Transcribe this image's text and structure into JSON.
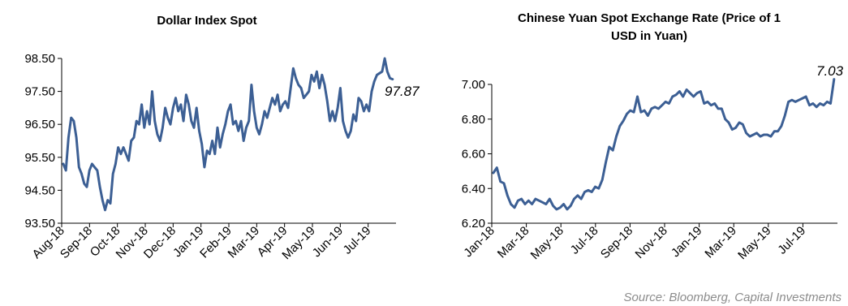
{
  "source": "Source: Bloomberg, Capital Investments",
  "chart_data": [
    {
      "type": "line",
      "title": "Dollar Index Spot",
      "xlabel": "",
      "ylabel": "",
      "ylim": [
        93.5,
        98.5
      ],
      "yticks": [
        "93.50",
        "94.50",
        "95.50",
        "96.50",
        "97.50",
        "98.50"
      ],
      "xticks": [
        "Aug-18",
        "Sep-18",
        "Oct-18",
        "Nov-18",
        "Dec-18",
        "Jan-19",
        "Feb-19",
        "Mar-19",
        "Apr-19",
        "May-19",
        "Jun-19",
        "Jul-19"
      ],
      "xlim": [
        0,
        12.7
      ],
      "grid": false,
      "color": "#3c5f94",
      "end_label": "97.87",
      "series": [
        {
          "values": [
            [
              0.0,
              95.3
            ],
            [
              0.1,
              95.1
            ],
            [
              0.2,
              96.1
            ],
            [
              0.3,
              96.7
            ],
            [
              0.4,
              96.6
            ],
            [
              0.5,
              96.1
            ],
            [
              0.6,
              95.2
            ],
            [
              0.7,
              95.0
            ],
            [
              0.8,
              94.7
            ],
            [
              0.9,
              94.6
            ],
            [
              1.0,
              95.1
            ],
            [
              1.1,
              95.3
            ],
            [
              1.2,
              95.2
            ],
            [
              1.3,
              95.1
            ],
            [
              1.4,
              94.6
            ],
            [
              1.5,
              94.2
            ],
            [
              1.6,
              93.9
            ],
            [
              1.7,
              94.2
            ],
            [
              1.8,
              94.1
            ],
            [
              1.9,
              95.0
            ],
            [
              2.0,
              95.3
            ],
            [
              2.1,
              95.8
            ],
            [
              2.2,
              95.6
            ],
            [
              2.3,
              95.8
            ],
            [
              2.4,
              95.6
            ],
            [
              2.5,
              95.4
            ],
            [
              2.6,
              96.0
            ],
            [
              2.7,
              96.1
            ],
            [
              2.8,
              96.6
            ],
            [
              2.9,
              96.5
            ],
            [
              3.0,
              97.1
            ],
            [
              3.1,
              96.4
            ],
            [
              3.2,
              96.9
            ],
            [
              3.3,
              96.5
            ],
            [
              3.4,
              97.5
            ],
            [
              3.5,
              96.6
            ],
            [
              3.6,
              96.2
            ],
            [
              3.7,
              96.0
            ],
            [
              3.8,
              96.4
            ],
            [
              3.9,
              97.0
            ],
            [
              4.0,
              96.7
            ],
            [
              4.1,
              96.5
            ],
            [
              4.2,
              97.0
            ],
            [
              4.3,
              97.3
            ],
            [
              4.4,
              96.9
            ],
            [
              4.5,
              97.1
            ],
            [
              4.6,
              96.6
            ],
            [
              4.7,
              97.4
            ],
            [
              4.8,
              97.1
            ],
            [
              4.9,
              96.6
            ],
            [
              5.0,
              96.4
            ],
            [
              5.1,
              97.0
            ],
            [
              5.2,
              96.3
            ],
            [
              5.3,
              95.9
            ],
            [
              5.4,
              95.2
            ],
            [
              5.5,
              95.7
            ],
            [
              5.6,
              95.6
            ],
            [
              5.7,
              96.0
            ],
            [
              5.8,
              95.6
            ],
            [
              5.9,
              96.4
            ],
            [
              6.0,
              95.8
            ],
            [
              6.1,
              96.2
            ],
            [
              6.2,
              96.5
            ],
            [
              6.3,
              96.9
            ],
            [
              6.4,
              97.1
            ],
            [
              6.5,
              96.5
            ],
            [
              6.6,
              96.6
            ],
            [
              6.7,
              96.3
            ],
            [
              6.8,
              96.6
            ],
            [
              6.9,
              96.0
            ],
            [
              7.0,
              96.4
            ],
            [
              7.1,
              96.6
            ],
            [
              7.2,
              97.7
            ],
            [
              7.3,
              96.9
            ],
            [
              7.4,
              96.4
            ],
            [
              7.5,
              96.2
            ],
            [
              7.6,
              96.5
            ],
            [
              7.7,
              96.9
            ],
            [
              7.8,
              96.7
            ],
            [
              7.9,
              97.0
            ],
            [
              8.0,
              97.3
            ],
            [
              8.1,
              97.1
            ],
            [
              8.2,
              97.4
            ],
            [
              8.3,
              96.9
            ],
            [
              8.4,
              97.1
            ],
            [
              8.5,
              97.2
            ],
            [
              8.6,
              97.0
            ],
            [
              8.7,
              97.6
            ],
            [
              8.8,
              98.2
            ],
            [
              8.9,
              97.9
            ],
            [
              9.0,
              97.7
            ],
            [
              9.1,
              97.6
            ],
            [
              9.2,
              97.3
            ],
            [
              9.3,
              97.4
            ],
            [
              9.4,
              97.5
            ],
            [
              9.5,
              98.0
            ],
            [
              9.6,
              97.8
            ],
            [
              9.7,
              98.1
            ],
            [
              9.8,
              97.6
            ],
            [
              9.9,
              98.0
            ],
            [
              10.0,
              97.7
            ],
            [
              10.1,
              97.2
            ],
            [
              10.2,
              96.6
            ],
            [
              10.3,
              96.9
            ],
            [
              10.4,
              96.6
            ],
            [
              10.5,
              97.0
            ],
            [
              10.6,
              97.6
            ],
            [
              10.7,
              96.6
            ],
            [
              10.8,
              96.3
            ],
            [
              10.9,
              96.1
            ],
            [
              11.0,
              96.3
            ],
            [
              11.1,
              96.8
            ],
            [
              11.2,
              96.6
            ],
            [
              11.3,
              97.3
            ],
            [
              11.4,
              97.2
            ],
            [
              11.5,
              96.9
            ],
            [
              11.6,
              97.1
            ],
            [
              11.7,
              96.9
            ],
            [
              11.8,
              97.5
            ],
            [
              11.9,
              97.8
            ],
            [
              12.0,
              98.0
            ],
            [
              12.2,
              98.1
            ],
            [
              12.3,
              98.5
            ],
            [
              12.4,
              98.1
            ],
            [
              12.5,
              97.9
            ],
            [
              12.6,
              97.87
            ]
          ]
        }
      ]
    },
    {
      "type": "line",
      "title": "Chinese Yuan Spot Exchange Rate (Price of 1 USD in Yuan)",
      "xlabel": "",
      "ylabel": "",
      "ylim": [
        6.2,
        7.0
      ],
      "yticks": [
        "6.20",
        "6.40",
        "6.60",
        "6.80",
        "7.00"
      ],
      "xticks": [
        "Jan-18",
        "Mar-18",
        "May-18",
        "Jul-18",
        "Sep-18",
        "Nov-18",
        "Jan-19",
        "Mar-19",
        "May-19",
        "Jul-19"
      ],
      "xlim": [
        0,
        19.5
      ],
      "grid": false,
      "color": "#3c5f94",
      "end_label": "7.03",
      "series": [
        {
          "values": [
            [
              0.0,
              6.49
            ],
            [
              0.2,
              6.52
            ],
            [
              0.4,
              6.44
            ],
            [
              0.6,
              6.43
            ],
            [
              0.8,
              6.36
            ],
            [
              1.0,
              6.31
            ],
            [
              1.2,
              6.29
            ],
            [
              1.4,
              6.33
            ],
            [
              1.6,
              6.34
            ],
            [
              1.8,
              6.31
            ],
            [
              2.0,
              6.33
            ],
            [
              2.2,
              6.31
            ],
            [
              2.4,
              6.34
            ],
            [
              2.6,
              6.33
            ],
            [
              2.8,
              6.32
            ],
            [
              3.0,
              6.31
            ],
            [
              3.2,
              6.34
            ],
            [
              3.4,
              6.3
            ],
            [
              3.6,
              6.28
            ],
            [
              3.8,
              6.29
            ],
            [
              4.0,
              6.31
            ],
            [
              4.2,
              6.28
            ],
            [
              4.4,
              6.3
            ],
            [
              4.6,
              6.34
            ],
            [
              4.8,
              6.36
            ],
            [
              5.0,
              6.34
            ],
            [
              5.2,
              6.38
            ],
            [
              5.4,
              6.39
            ],
            [
              5.6,
              6.38
            ],
            [
              5.8,
              6.41
            ],
            [
              6.0,
              6.4
            ],
            [
              6.2,
              6.45
            ],
            [
              6.4,
              6.55
            ],
            [
              6.6,
              6.64
            ],
            [
              6.8,
              6.62
            ],
            [
              7.0,
              6.7
            ],
            [
              7.2,
              6.76
            ],
            [
              7.4,
              6.79
            ],
            [
              7.6,
              6.83
            ],
            [
              7.8,
              6.85
            ],
            [
              8.0,
              6.84
            ],
            [
              8.2,
              6.93
            ],
            [
              8.4,
              6.84
            ],
            [
              8.6,
              6.85
            ],
            [
              8.8,
              6.82
            ],
            [
              9.0,
              6.86
            ],
            [
              9.2,
              6.87
            ],
            [
              9.4,
              6.86
            ],
            [
              9.6,
              6.88
            ],
            [
              9.8,
              6.9
            ],
            [
              10.0,
              6.89
            ],
            [
              10.2,
              6.93
            ],
            [
              10.4,
              6.94
            ],
            [
              10.6,
              6.96
            ],
            [
              10.8,
              6.93
            ],
            [
              11.0,
              6.97
            ],
            [
              11.2,
              6.95
            ],
            [
              11.4,
              6.93
            ],
            [
              11.6,
              6.95
            ],
            [
              11.8,
              6.96
            ],
            [
              12.0,
              6.89
            ],
            [
              12.2,
              6.9
            ],
            [
              12.4,
              6.88
            ],
            [
              12.6,
              6.89
            ],
            [
              12.8,
              6.86
            ],
            [
              13.0,
              6.86
            ],
            [
              13.2,
              6.8
            ],
            [
              13.4,
              6.78
            ],
            [
              13.6,
              6.74
            ],
            [
              13.8,
              6.75
            ],
            [
              14.0,
              6.78
            ],
            [
              14.2,
              6.77
            ],
            [
              14.4,
              6.72
            ],
            [
              14.6,
              6.7
            ],
            [
              14.8,
              6.71
            ],
            [
              15.0,
              6.72
            ],
            [
              15.2,
              6.7
            ],
            [
              15.4,
              6.71
            ],
            [
              15.6,
              6.71
            ],
            [
              15.8,
              6.7
            ],
            [
              16.0,
              6.73
            ],
            [
              16.2,
              6.73
            ],
            [
              16.4,
              6.76
            ],
            [
              16.6,
              6.82
            ],
            [
              16.8,
              6.9
            ],
            [
              17.0,
              6.91
            ],
            [
              17.2,
              6.9
            ],
            [
              17.4,
              6.91
            ],
            [
              17.6,
              6.92
            ],
            [
              17.8,
              6.93
            ],
            [
              18.0,
              6.88
            ],
            [
              18.2,
              6.89
            ],
            [
              18.4,
              6.87
            ],
            [
              18.6,
              6.89
            ],
            [
              18.8,
              6.88
            ],
            [
              19.0,
              6.9
            ],
            [
              19.2,
              6.89
            ],
            [
              19.4,
              7.03
            ]
          ]
        }
      ]
    }
  ]
}
